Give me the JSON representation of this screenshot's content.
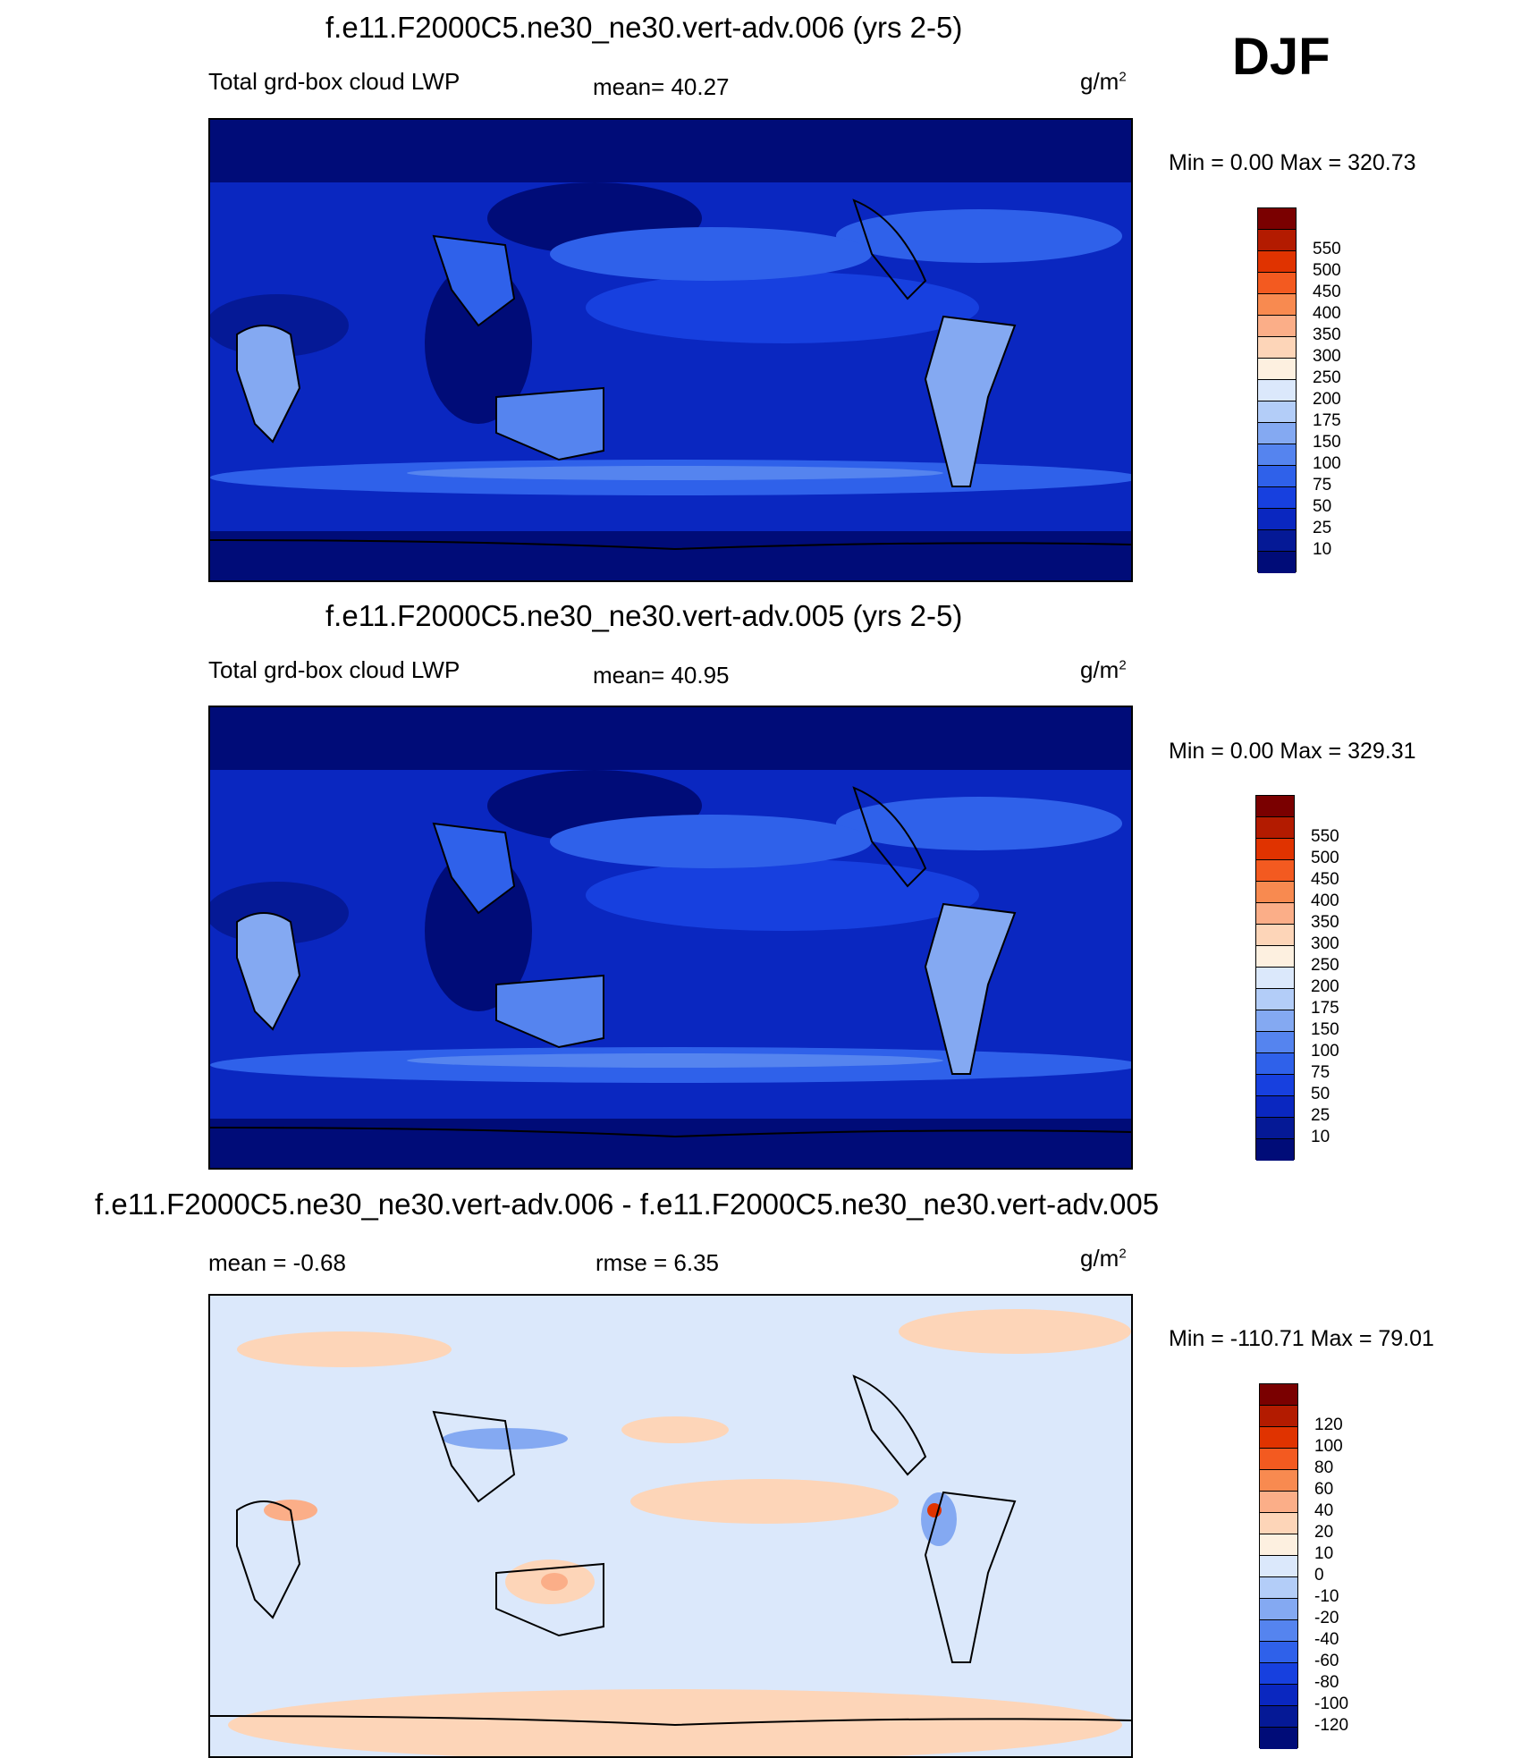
{
  "season": "DJF",
  "panels": [
    {
      "title": "f.e11.F2000C5.ne30_ne30.vert-adv.006 (yrs 2-5)",
      "left_label": "Total grd-box cloud LWP",
      "center_label": "mean=  40.27",
      "units_base": "g/m",
      "units_exp": "2",
      "minmax": "Min =    0.00 Max = 320.73",
      "colorbar": {
        "colors": [
          "#7a0000",
          "#b31b00",
          "#e03300",
          "#f35a20",
          "#f88a50",
          "#fbae88",
          "#fdd5b8",
          "#fdf0e0",
          "#dbe8fb",
          "#b3cdf8",
          "#84a9f2",
          "#5584ef",
          "#2f61ea",
          "#1740df",
          "#0a27c0",
          "#051996",
          "#000c78"
        ],
        "labels": [
          "550",
          "500",
          "450",
          "400",
          "350",
          "300",
          "250",
          "200",
          "175",
          "150",
          "100",
          "75",
          "50",
          "25",
          "10"
        ]
      },
      "chart_data": {
        "type": "heatmap",
        "variable": "Total grd-box cloud LWP",
        "units": "g/m2",
        "mean": 40.27,
        "min": 0.0,
        "max": 320.73,
        "contour_levels": [
          10,
          25,
          50,
          75,
          100,
          150,
          175,
          200,
          250,
          300,
          350,
          400,
          450,
          500,
          550
        ]
      }
    },
    {
      "title": "f.e11.F2000C5.ne30_ne30.vert-adv.005 (yrs 2-5)",
      "left_label": "Total grd-box cloud LWP",
      "center_label": "mean=  40.95",
      "units_base": "g/m",
      "units_exp": "2",
      "minmax": "Min =    0.00 Max = 329.31",
      "colorbar": {
        "colors": [
          "#7a0000",
          "#b31b00",
          "#e03300",
          "#f35a20",
          "#f88a50",
          "#fbae88",
          "#fdd5b8",
          "#fdf0e0",
          "#dbe8fb",
          "#b3cdf8",
          "#84a9f2",
          "#5584ef",
          "#2f61ea",
          "#1740df",
          "#0a27c0",
          "#051996",
          "#000c78"
        ],
        "labels": [
          "550",
          "500",
          "450",
          "400",
          "350",
          "300",
          "250",
          "200",
          "175",
          "150",
          "100",
          "75",
          "50",
          "25",
          "10"
        ]
      },
      "chart_data": {
        "type": "heatmap",
        "variable": "Total grd-box cloud LWP",
        "units": "g/m2",
        "mean": 40.95,
        "min": 0.0,
        "max": 329.31,
        "contour_levels": [
          10,
          25,
          50,
          75,
          100,
          150,
          175,
          200,
          250,
          300,
          350,
          400,
          450,
          500,
          550
        ]
      }
    },
    {
      "title": "f.e11.F2000C5.ne30_ne30.vert-adv.006 - f.e11.F2000C5.ne30_ne30.vert-adv.005",
      "left_label": "mean =  -0.68",
      "center_label": "rmse =   6.35",
      "units_base": "g/m",
      "units_exp": "2",
      "minmax": "Min = -110.71 Max =  79.01",
      "colorbar": {
        "colors": [
          "#7a0000",
          "#b31b00",
          "#e03300",
          "#f35a20",
          "#f88a50",
          "#fbae88",
          "#fdd5b8",
          "#fdf0e0",
          "#dbe8fb",
          "#b3cdf8",
          "#84a9f2",
          "#5584ef",
          "#2f61ea",
          "#1740df",
          "#0a27c0",
          "#051996",
          "#000c78"
        ],
        "labels": [
          "120",
          "100",
          "80",
          "60",
          "40",
          "20",
          "10",
          "0",
          "-10",
          "-20",
          "-40",
          "-60",
          "-80",
          "-100",
          "-120"
        ]
      },
      "chart_data": {
        "type": "heatmap",
        "variable": "difference",
        "units": "g/m2",
        "mean": -0.68,
        "rmse": 6.35,
        "min": -110.71,
        "max": 79.01,
        "contour_levels": [
          -120,
          -100,
          -80,
          -60,
          -40,
          -20,
          -10,
          0,
          10,
          20,
          40,
          60,
          80,
          100,
          120
        ]
      }
    }
  ]
}
